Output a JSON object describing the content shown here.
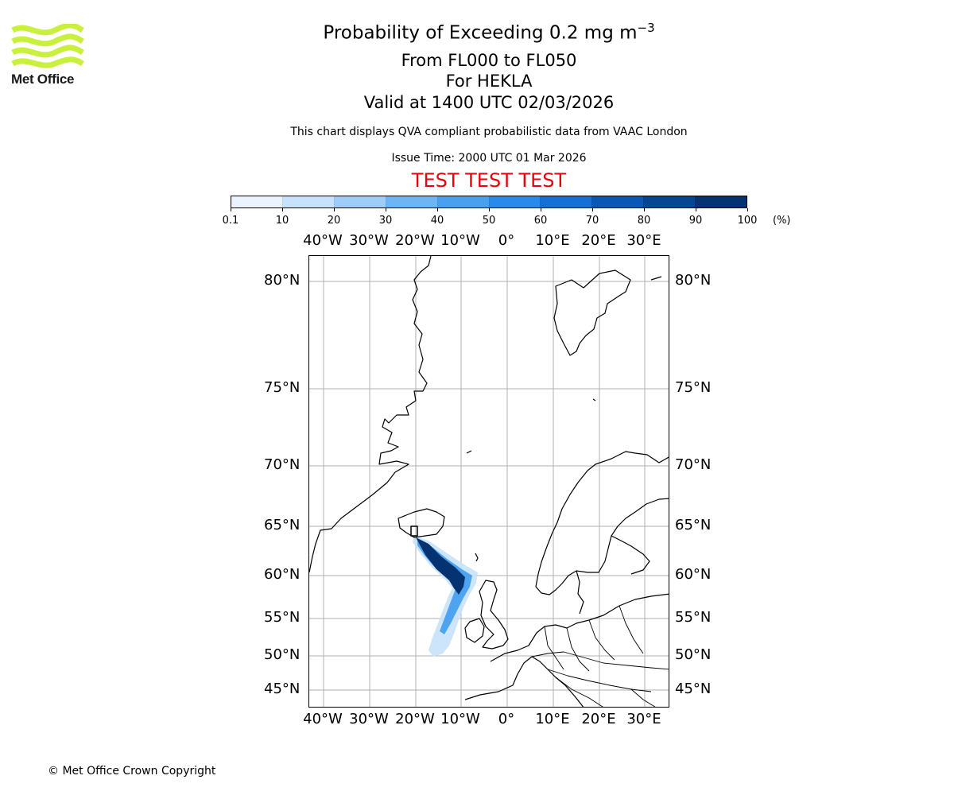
{
  "branding": {
    "logo_text": "Met Office",
    "logo_color": "#c8f03c"
  },
  "header": {
    "title_text": "Probability of Exceeding 0.2 mg m",
    "title_superscript": "−3",
    "level_range": "From FL000 to FL050",
    "volcano": "For HEKLA",
    "valid_time": "Valid at 1400 UTC 02/03/2026",
    "description": "This chart displays QVA compliant probabilistic data from VAAC London",
    "issue_time": "Issue Time: 2000 UTC 01 Mar 2026",
    "test_banner": "TEST TEST TEST",
    "test_color": "#e8000b"
  },
  "colorbar": {
    "unit": "(%)",
    "ticks": [
      "0.1",
      "10",
      "20",
      "30",
      "40",
      "50",
      "60",
      "70",
      "80",
      "90",
      "100"
    ],
    "colors": [
      "#eaf4fe",
      "#c7e2fb",
      "#9ecdf8",
      "#6fb5f3",
      "#48a0ef",
      "#2a8aea",
      "#1470d4",
      "#0a58b6",
      "#064592",
      "#053372"
    ]
  },
  "map": {
    "lon_labels": [
      "40°W",
      "30°W",
      "20°W",
      "10°W",
      "0°",
      "10°E",
      "20°E",
      "30°E"
    ],
    "lat_labels": [
      "80°N",
      "75°N",
      "70°N",
      "65°N",
      "60°N",
      "55°N",
      "50°N",
      "45°N"
    ],
    "plume": {
      "source": "HEKLA",
      "bands": [
        {
          "range": "0.1–30 %",
          "color": "#c7e2fb"
        },
        {
          "range": "30–60 %",
          "color": "#48a0ef"
        },
        {
          "range": "60–100 %",
          "color": "#053372"
        }
      ]
    }
  },
  "footer": {
    "copyright": "© Met Office Crown Copyright"
  }
}
